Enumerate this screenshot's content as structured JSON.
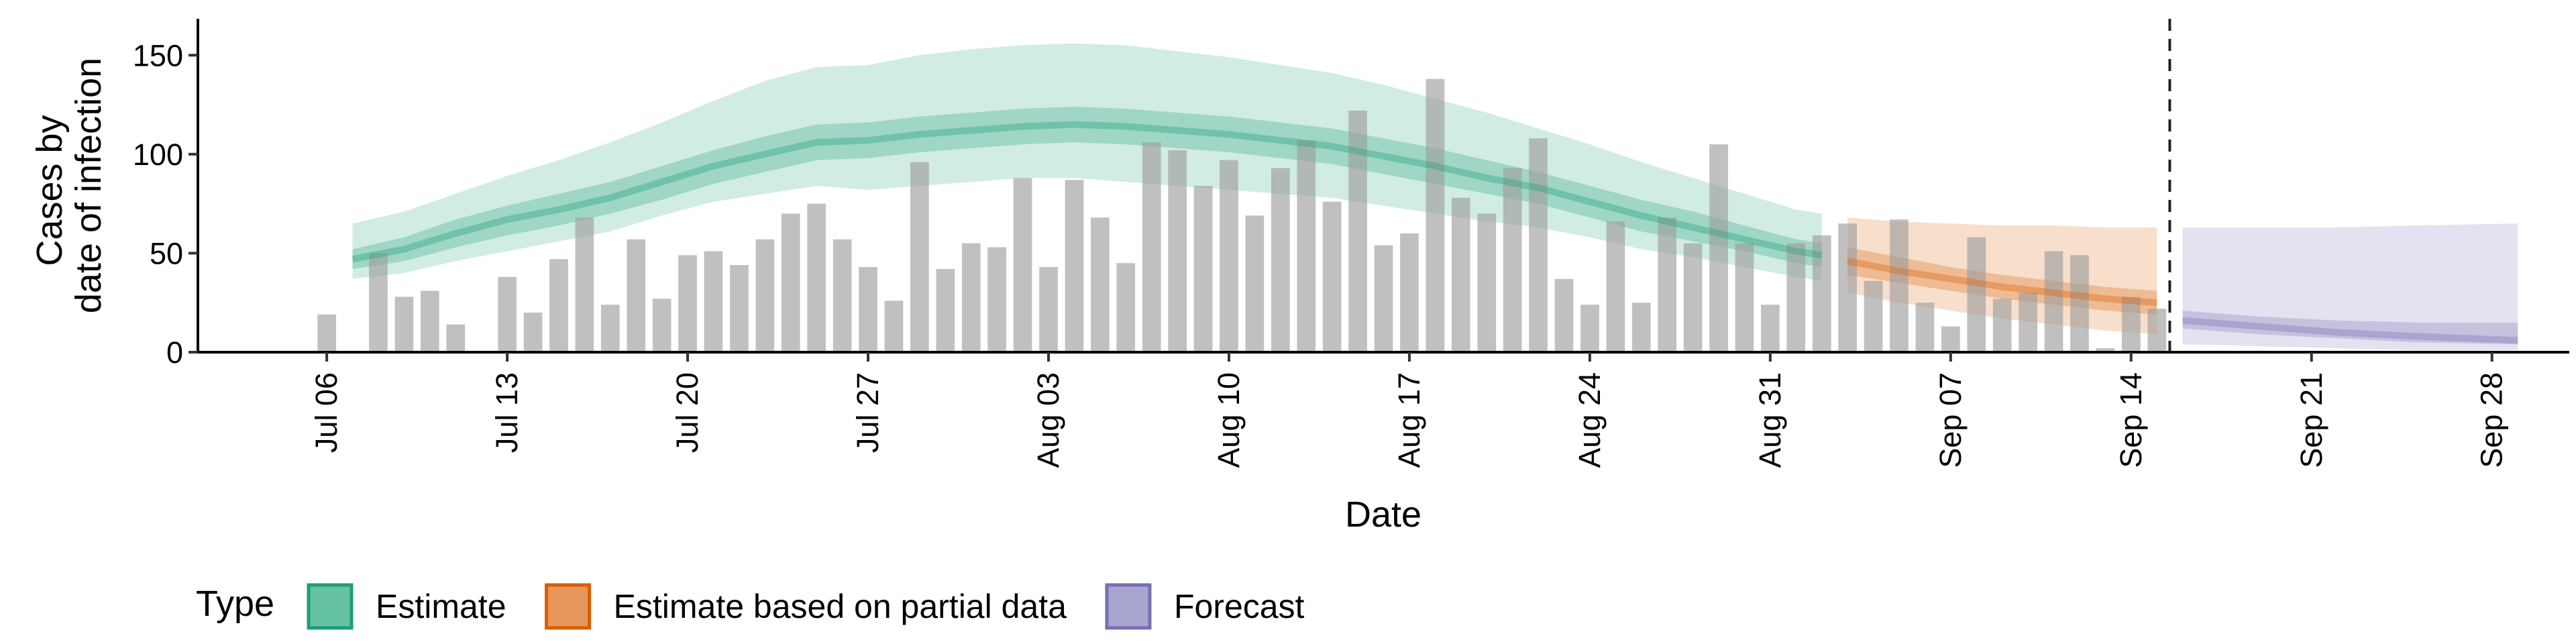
{
  "chart_data": {
    "type": "bar",
    "xlabel": "Date",
    "ylabel_lines": [
      "Cases by",
      "date of infection"
    ],
    "ylim": [
      0,
      165
    ],
    "xlim": [
      "2020-07-01",
      "2020-10-01"
    ],
    "yticks": [
      0,
      50,
      100,
      150
    ],
    "xticks": [
      "2020-07-06",
      "2020-07-13",
      "2020-07-20",
      "2020-07-27",
      "2020-08-03",
      "2020-08-10",
      "2020-08-17",
      "2020-08-24",
      "2020-08-31",
      "2020-09-07",
      "2020-09-14",
      "2020-09-21",
      "2020-09-28"
    ],
    "xtick_labels": [
      "Jul 06",
      "Jul 13",
      "Jul 20",
      "Jul 27",
      "Aug 03",
      "Aug 10",
      "Aug 17",
      "Aug 24",
      "Aug 31",
      "Sep 07",
      "Sep 14",
      "Sep 21",
      "Sep 28"
    ],
    "vline_date": "2020-09-15",
    "grid": false,
    "legend_position": "bottom",
    "bars": {
      "dates": [
        "2020-07-06",
        "2020-07-07",
        "2020-07-08",
        "2020-07-09",
        "2020-07-10",
        "2020-07-11",
        "2020-07-12",
        "2020-07-13",
        "2020-07-14",
        "2020-07-15",
        "2020-07-16",
        "2020-07-17",
        "2020-07-18",
        "2020-07-19",
        "2020-07-20",
        "2020-07-21",
        "2020-07-22",
        "2020-07-23",
        "2020-07-24",
        "2020-07-25",
        "2020-07-26",
        "2020-07-27",
        "2020-07-28",
        "2020-07-29",
        "2020-07-30",
        "2020-07-31",
        "2020-08-01",
        "2020-08-02",
        "2020-08-03",
        "2020-08-04",
        "2020-08-05",
        "2020-08-06",
        "2020-08-07",
        "2020-08-08",
        "2020-08-09",
        "2020-08-10",
        "2020-08-11",
        "2020-08-12",
        "2020-08-13",
        "2020-08-14",
        "2020-08-15",
        "2020-08-16",
        "2020-08-17",
        "2020-08-18",
        "2020-08-19",
        "2020-08-20",
        "2020-08-21",
        "2020-08-22",
        "2020-08-23",
        "2020-08-24",
        "2020-08-25",
        "2020-08-26",
        "2020-08-27",
        "2020-08-28",
        "2020-08-29",
        "2020-08-30",
        "2020-08-31",
        "2020-09-01",
        "2020-09-02",
        "2020-09-03",
        "2020-09-04",
        "2020-09-05",
        "2020-09-06",
        "2020-09-07",
        "2020-09-08",
        "2020-09-09",
        "2020-09-10",
        "2020-09-11",
        "2020-09-12",
        "2020-09-13",
        "2020-09-14",
        "2020-09-15"
      ],
      "values": [
        19,
        0,
        50,
        28,
        31,
        14,
        0,
        38,
        20,
        47,
        68,
        24,
        57,
        27,
        49,
        51,
        44,
        57,
        70,
        75,
        57,
        43,
        26,
        96,
        42,
        55,
        53,
        88,
        43,
        87,
        68,
        45,
        106,
        102,
        84,
        97,
        69,
        93,
        107,
        76,
        122,
        54,
        60,
        138,
        78,
        70,
        93,
        108,
        37,
        24,
        66,
        25,
        68,
        55,
        105,
        55,
        24,
        55,
        59,
        65,
        36,
        67,
        25,
        13,
        58,
        27,
        30,
        51,
        49,
        2,
        28,
        22
      ]
    },
    "series": [
      {
        "name": "Estimate",
        "color": "#1b9e77",
        "dates": [
          "2020-07-07",
          "2020-07-09",
          "2020-07-11",
          "2020-07-13",
          "2020-07-15",
          "2020-07-17",
          "2020-07-19",
          "2020-07-21",
          "2020-07-23",
          "2020-07-25",
          "2020-07-27",
          "2020-07-29",
          "2020-07-31",
          "2020-08-02",
          "2020-08-04",
          "2020-08-06",
          "2020-08-08",
          "2020-08-10",
          "2020-08-12",
          "2020-08-14",
          "2020-08-16",
          "2020-08-18",
          "2020-08-20",
          "2020-08-22",
          "2020-08-24",
          "2020-08-26",
          "2020-08-28",
          "2020-08-30",
          "2020-09-01",
          "2020-09-02"
        ],
        "median": [
          47,
          52,
          60,
          67,
          72,
          78,
          86,
          94,
          100,
          106,
          107,
          110,
          112,
          114,
          115,
          114,
          112,
          110,
          107,
          104,
          99,
          94,
          88,
          83,
          76,
          69,
          63,
          57,
          51,
          49
        ],
        "lower50": [
          42,
          46,
          53,
          59,
          64,
          70,
          77,
          85,
          91,
          97,
          98,
          101,
          103,
          105,
          106,
          105,
          103,
          101,
          98,
          95,
          90,
          85,
          80,
          75,
          68,
          61,
          56,
          51,
          45,
          43
        ],
        "upper50": [
          52,
          58,
          67,
          74,
          80,
          86,
          94,
          102,
          109,
          115,
          116,
          119,
          121,
          123,
          124,
          123,
          121,
          119,
          116,
          113,
          108,
          103,
          97,
          91,
          84,
          77,
          71,
          64,
          57,
          55
        ],
        "lower90": [
          37,
          40,
          46,
          51,
          56,
          61,
          69,
          76,
          80,
          84,
          82,
          84,
          86,
          88,
          88,
          86,
          84,
          82,
          80,
          78,
          74,
          70,
          66,
          63,
          58,
          52,
          48,
          43,
          38,
          36
        ],
        "upper90": [
          65,
          71,
          80,
          89,
          97,
          106,
          116,
          127,
          137,
          144,
          145,
          150,
          153,
          155,
          156,
          155,
          152,
          149,
          145,
          141,
          135,
          128,
          121,
          113,
          105,
          96,
          88,
          80,
          72,
          70
        ]
      },
      {
        "name": "Estimate based on partial data",
        "color": "#d95f02",
        "dates": [
          "2020-09-03",
          "2020-09-05",
          "2020-09-07",
          "2020-09-09",
          "2020-09-11",
          "2020-09-13",
          "2020-09-15"
        ],
        "median": [
          46,
          41,
          37,
          33,
          30,
          27,
          25
        ],
        "lower50": [
          39,
          35,
          31,
          27,
          24,
          21,
          19
        ],
        "upper50": [
          53,
          48,
          43,
          39,
          36,
          33,
          31
        ],
        "lower90": [
          30,
          25,
          21,
          17,
          14,
          11,
          9
        ],
        "upper90": [
          68,
          66,
          65,
          64,
          64,
          63,
          63
        ]
      },
      {
        "name": "Forecast",
        "color": "#7570b3",
        "dates": [
          "2020-09-16",
          "2020-09-19",
          "2020-09-22",
          "2020-09-25",
          "2020-09-29"
        ],
        "median": [
          16,
          13,
          10,
          8,
          6
        ],
        "lower50": [
          12,
          9,
          7,
          5,
          4
        ],
        "upper50": [
          21,
          18,
          16,
          15,
          15
        ],
        "lower90": [
          4,
          3,
          2,
          1,
          1
        ],
        "upper90": [
          63,
          63,
          63,
          64,
          65
        ]
      }
    ],
    "legend": {
      "title": "Type",
      "entries": [
        {
          "label": "Estimate",
          "fill": "#66c2a5",
          "stroke": "#1b9e77"
        },
        {
          "label": "Estimate based on partial data",
          "fill": "#e8975c",
          "stroke": "#d95f02"
        },
        {
          "label": "Forecast",
          "fill": "#a8a5d0",
          "stroke": "#7570b3"
        }
      ]
    }
  }
}
